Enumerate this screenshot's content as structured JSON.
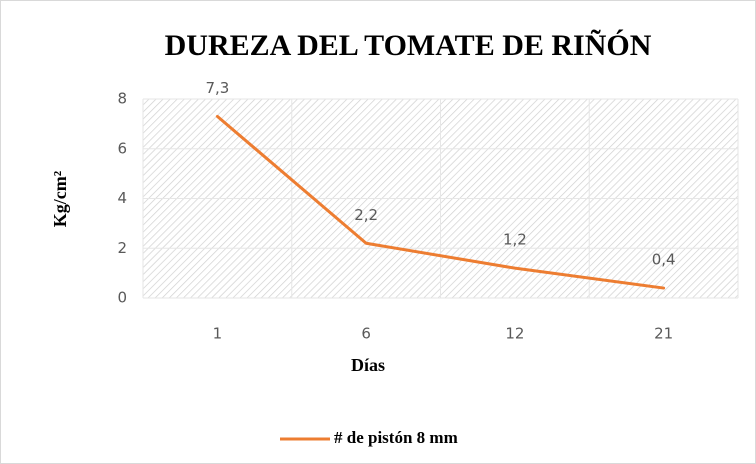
{
  "chart_data": {
    "type": "line",
    "title": "DUREZA  DEL TOMATE DE RIÑÓN",
    "xlabel": "Días",
    "ylabel": "Kg/cm²",
    "categories": [
      "1",
      "6",
      "12",
      "21"
    ],
    "series": [
      {
        "name": "# de pistón 8 mm",
        "color": "#ed7d31",
        "values": [
          7.3,
          2.2,
          1.2,
          0.4
        ],
        "value_labels": [
          "7,3",
          "2,2",
          "1,2",
          "0,4"
        ]
      }
    ],
    "ylim": [
      0,
      8
    ],
    "yticks": [
      0,
      2,
      4,
      6,
      8
    ],
    "grid": true,
    "legend": "bottom"
  }
}
